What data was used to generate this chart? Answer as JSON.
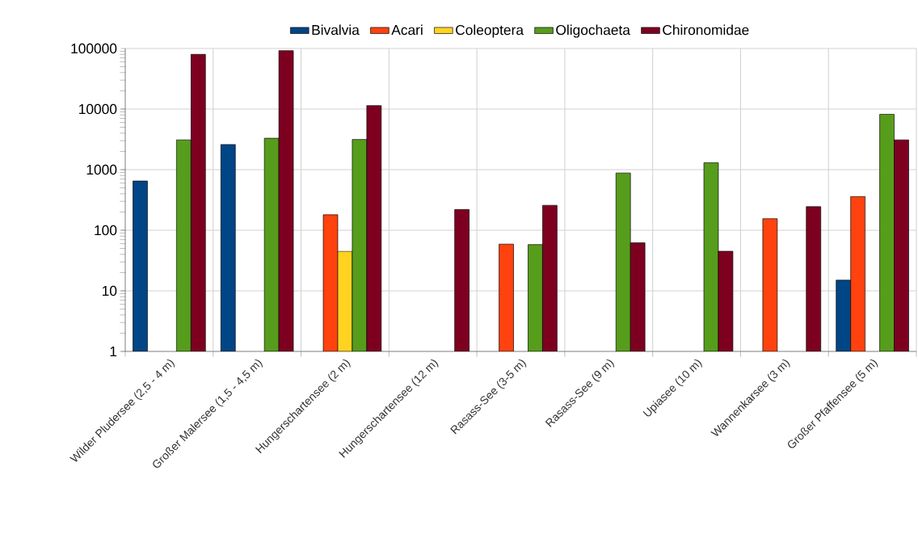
{
  "chart_data": {
    "type": "bar",
    "log": "y",
    "grid": true,
    "legend": "top",
    "categories": [
      "Wilder Pludersee (2,5 - 4 m)",
      "Großer Malersee (1,5 - 4,5 m)",
      "Hungerschartensee (2 m)",
      "Hungerschartensee (12 m)",
      "Rasass-See (3-5 m)",
      "Rasass-See (9 m)",
      "Upiasee (10 m)",
      "Wannenkarsee (3 m)",
      "Großer Pfaffensee (5 m)"
    ],
    "ylim": [
      1,
      100000
    ],
    "yticks": [
      1,
      10,
      100,
      1000,
      10000,
      100000
    ],
    "series": [
      {
        "name": "Bivalvia",
        "color": "#004586",
        "values": [
          650,
          2600,
          null,
          null,
          null,
          null,
          null,
          null,
          15
        ]
      },
      {
        "name": "Acari",
        "color": "#ff420e",
        "values": [
          null,
          null,
          180,
          null,
          59,
          null,
          null,
          155,
          360
        ]
      },
      {
        "name": "Coleoptera",
        "color": "#ffd320",
        "values": [
          null,
          null,
          45,
          null,
          null,
          null,
          null,
          null,
          null
        ]
      },
      {
        "name": "Oligochaeta",
        "color": "#579d1c",
        "values": [
          3100,
          3300,
          3150,
          null,
          58,
          880,
          1300,
          null,
          8200
        ]
      },
      {
        "name": "Chironomidae",
        "color": "#7e0021",
        "values": [
          80000,
          92000,
          11400,
          220,
          258,
          62,
          45,
          245,
          3100
        ]
      }
    ]
  }
}
